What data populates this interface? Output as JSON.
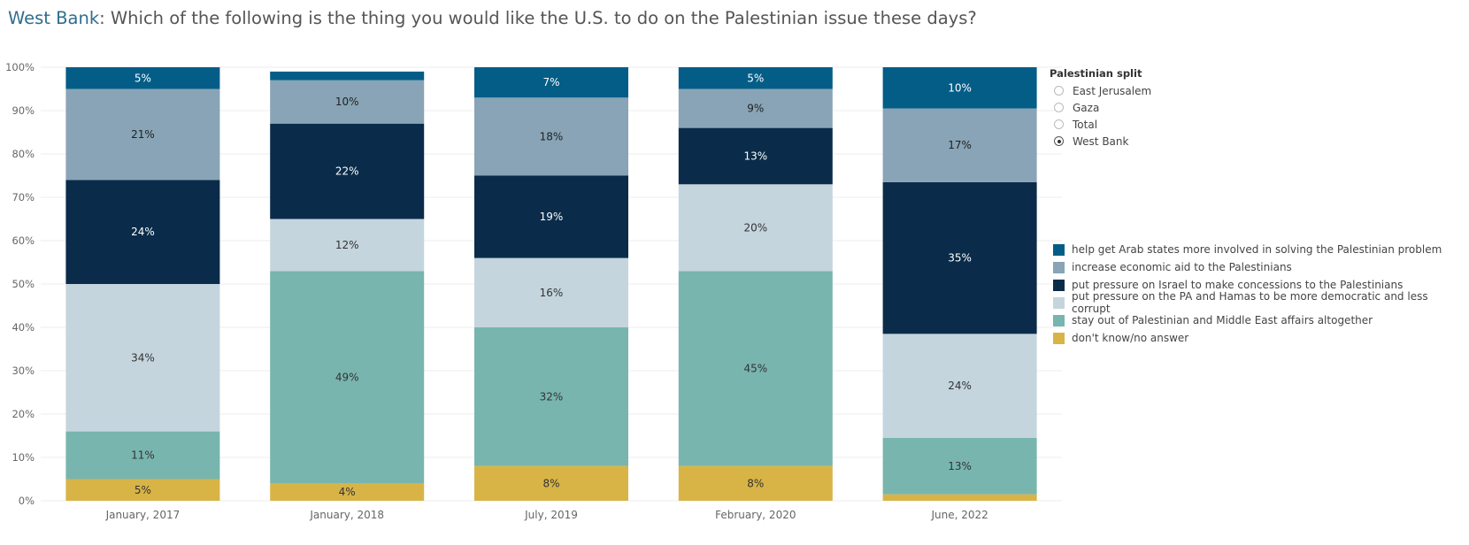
{
  "title": {
    "highlight": "West Bank",
    "rest": ": Which of the following is the thing you would like the U.S. to do on the Palestinian issue these days?"
  },
  "filter": {
    "title": "Palestinian split",
    "options": [
      {
        "label": "East Jerusalem",
        "selected": false
      },
      {
        "label": "Gaza",
        "selected": false
      },
      {
        "label": "Total",
        "selected": false
      },
      {
        "label": "West Bank",
        "selected": true
      }
    ]
  },
  "chart_data": {
    "type": "bar",
    "stacked": true,
    "ylim": [
      0,
      100
    ],
    "yticks": [
      "0%",
      "10%",
      "20%",
      "30%",
      "40%",
      "50%",
      "60%",
      "70%",
      "80%",
      "90%",
      "100%"
    ],
    "grid": true,
    "legend_position": "right",
    "categories": [
      "January, 2017",
      "January, 2018",
      "July, 2019",
      "February, 2020",
      "June, 2022"
    ],
    "series": [
      {
        "name": "don't know/no answer",
        "color": "#d8b447",
        "label_color": "#333333",
        "values": [
          5,
          4,
          8,
          8,
          1.5
        ],
        "labels": [
          "5%",
          "4%",
          "8%",
          "8%",
          ""
        ]
      },
      {
        "name": "stay out of Palestinian and Middle East affairs altogether",
        "color": "#78b5ae",
        "label_color": "#333333",
        "values": [
          11,
          49,
          32,
          45,
          13
        ],
        "labels": [
          "11%",
          "49%",
          "32%",
          "45%",
          "13%"
        ]
      },
      {
        "name": "put pressure on the PA and Hamas to be more democratic and less corrupt",
        "color": "#c4d5de",
        "label_color": "#333333",
        "values": [
          34,
          12,
          16,
          20,
          24
        ],
        "labels": [
          "34%",
          "12%",
          "16%",
          "20%",
          "24%"
        ]
      },
      {
        "name": "put pressure on Israel to make concessions to the Palestinians",
        "color": "#0a2c4a",
        "label_color": "#ffffff",
        "values": [
          24,
          22,
          19,
          13,
          35
        ],
        "labels": [
          "24%",
          "22%",
          "19%",
          "13%",
          "35%"
        ]
      },
      {
        "name": "increase economic aid to the Palestinians",
        "color": "#88a4b6",
        "label_color": "#222222",
        "values": [
          21,
          10,
          18,
          9,
          17
        ],
        "labels": [
          "21%",
          "10%",
          "18%",
          "9%",
          "17%"
        ]
      },
      {
        "name": "help get Arab states more involved in solving the Palestinian problem",
        "color": "#035d87",
        "label_color": "#ffffff",
        "values": [
          5,
          2,
          7,
          5,
          10
        ],
        "labels": [
          "5%",
          "",
          "7%",
          "5%",
          "10%"
        ]
      }
    ],
    "legend_order": [
      5,
      4,
      3,
      2,
      1,
      0
    ]
  }
}
